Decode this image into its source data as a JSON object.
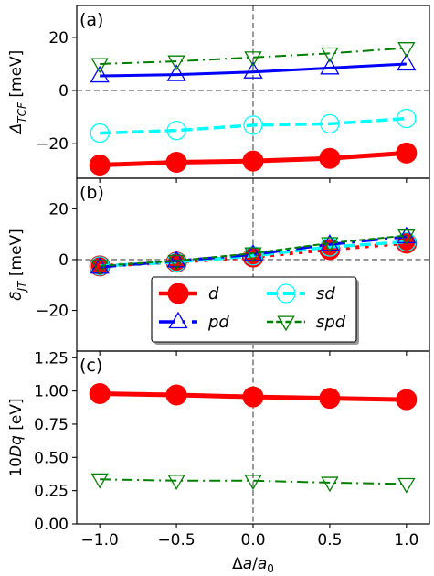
{
  "chart_data": [
    {
      "type": "line",
      "panel_label": "(a)",
      "ylabel": "Δ_TCF [meV]",
      "ylim": [
        -33,
        32
      ],
      "yticks": [
        -20,
        0,
        20
      ],
      "ref_lines": {
        "y0": true,
        "x0": true
      },
      "x": [
        -1.0,
        -0.5,
        0.0,
        0.5,
        1.0
      ],
      "series": [
        {
          "name": "d",
          "color": "#ff0000",
          "marker": "circle",
          "linestyle": "solid",
          "linewidth": 5,
          "values": [
            -28,
            -27,
            -26.5,
            -25.5,
            -23.5
          ]
        },
        {
          "name": "sd",
          "color": "#00ffff",
          "marker": "circle-open",
          "linestyle": "dashed",
          "linewidth": 3.5,
          "values": [
            -16,
            -15,
            -13,
            -12.5,
            -10.5
          ]
        },
        {
          "name": "pd",
          "color": "#0000ff",
          "marker": "triangle-up",
          "linestyle": "solid",
          "linewidth": 3,
          "values": [
            5.5,
            6,
            7,
            8.5,
            10
          ]
        },
        {
          "name": "spd",
          "color": "#008000",
          "marker": "triangle-down",
          "linestyle": "dashdot",
          "linewidth": 2,
          "values": [
            10,
            11,
            12.5,
            14,
            16
          ]
        }
      ]
    },
    {
      "type": "line",
      "panel_label": "(b)",
      "ylabel": "δ_JT [meV]",
      "ylim": [
        -36,
        32
      ],
      "yticks": [
        -20,
        0,
        20
      ],
      "ref_lines": {
        "y0": true,
        "x0": true
      },
      "x": [
        -1.0,
        -0.5,
        0.0,
        0.5,
        1.0
      ],
      "series": [
        {
          "name": "d",
          "color": "#ff0000",
          "marker": "circle",
          "linestyle": "dotted",
          "linewidth": 4,
          "values": [
            -2.5,
            -1,
            1,
            4,
            6.5
          ]
        },
        {
          "name": "sd",
          "color": "#00ffff",
          "marker": "circle-open",
          "linestyle": "dashed",
          "linewidth": 3.5,
          "values": [
            -2.5,
            -1,
            1.5,
            5,
            7
          ]
        },
        {
          "name": "pd",
          "color": "#0000ff",
          "marker": "triangle-up",
          "linestyle": "dashdot",
          "linewidth": 3,
          "values": [
            -3,
            -0.5,
            2,
            6,
            9
          ]
        },
        {
          "name": "spd",
          "color": "#008000",
          "marker": "triangle-down",
          "linestyle": "dashed",
          "linewidth": 2,
          "values": [
            -2.5,
            -0.5,
            2.5,
            6.5,
            9.5
          ]
        }
      ],
      "legend": {
        "location": "lower center",
        "columns": 2,
        "entries": [
          {
            "label": "d",
            "series": 0
          },
          {
            "label": "sd",
            "series": 1
          },
          {
            "label": "pd",
            "series": 2
          },
          {
            "label": "spd",
            "series": 3
          }
        ]
      }
    },
    {
      "type": "line",
      "panel_label": "(c)",
      "ylabel": "10Dq [eV]",
      "ylim": [
        0.0,
        1.3
      ],
      "yticks": [
        0.0,
        0.25,
        0.5,
        0.75,
        1.0,
        1.25
      ],
      "ytick_labels": [
        "0.00",
        "0.25",
        "0.50",
        "0.75",
        "1.00",
        "1.25"
      ],
      "ref_lines": {
        "y0": false,
        "x0": true
      },
      "x": [
        -1.0,
        -0.5,
        0.0,
        0.5,
        1.0
      ],
      "xlabel": "Δa/a₀",
      "xlim": [
        -1.15,
        1.15
      ],
      "xticks": [
        -1.0,
        -0.5,
        0.0,
        0.5,
        1.0
      ],
      "xtick_labels": [
        "−1.0",
        "−0.5",
        "0.0",
        "0.5",
        "1.0"
      ],
      "series": [
        {
          "name": "d",
          "color": "#ff0000",
          "marker": "circle",
          "linestyle": "solid",
          "linewidth": 5,
          "values": [
            0.98,
            0.97,
            0.955,
            0.945,
            0.935
          ]
        },
        {
          "name": "spd",
          "color": "#008000",
          "marker": "triangle-down",
          "linestyle": "dashdot",
          "linewidth": 2,
          "values": [
            0.335,
            0.325,
            0.325,
            0.31,
            0.3
          ]
        }
      ]
    }
  ]
}
